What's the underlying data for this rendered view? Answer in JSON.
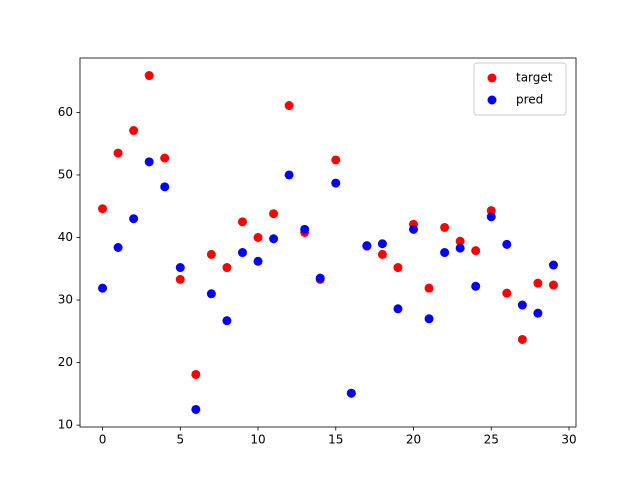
{
  "chart_data": {
    "type": "scatter",
    "x": [
      0,
      1,
      2,
      3,
      4,
      5,
      6,
      7,
      8,
      9,
      10,
      11,
      12,
      13,
      14,
      15,
      16,
      17,
      18,
      19,
      20,
      21,
      22,
      23,
      24,
      25,
      26,
      27,
      28,
      29
    ],
    "series": [
      {
        "name": "target",
        "color": "#ff0000",
        "values": [
          44.6,
          53.5,
          57.1,
          65.9,
          52.7,
          33.3,
          18.1,
          37.3,
          35.2,
          42.5,
          40.0,
          43.8,
          61.1,
          40.8,
          33.3,
          52.4,
          15.1,
          38.6,
          37.3,
          35.2,
          42.1,
          31.9,
          41.6,
          39.4,
          37.9,
          44.3,
          31.1,
          23.7,
          32.7,
          32.4
        ]
      },
      {
        "name": "pred",
        "color": "#0000ff",
        "values": [
          31.9,
          38.4,
          43.0,
          52.1,
          48.1,
          35.2,
          12.5,
          31.0,
          26.7,
          37.6,
          36.2,
          39.8,
          50.0,
          41.3,
          33.5,
          48.7,
          15.1,
          38.7,
          39.0,
          28.6,
          41.3,
          27.0,
          37.6,
          38.3,
          32.2,
          43.3,
          38.9,
          29.2,
          27.9,
          35.6
        ]
      }
    ],
    "xlim": [
      -1.45,
      30.45
    ],
    "xticks": [
      0,
      5,
      10,
      15,
      20,
      25,
      30
    ],
    "ylim": [
      9.7,
      68.7
    ],
    "yticks": [
      10,
      20,
      30,
      40,
      50,
      60
    ],
    "legend": "upper right"
  }
}
